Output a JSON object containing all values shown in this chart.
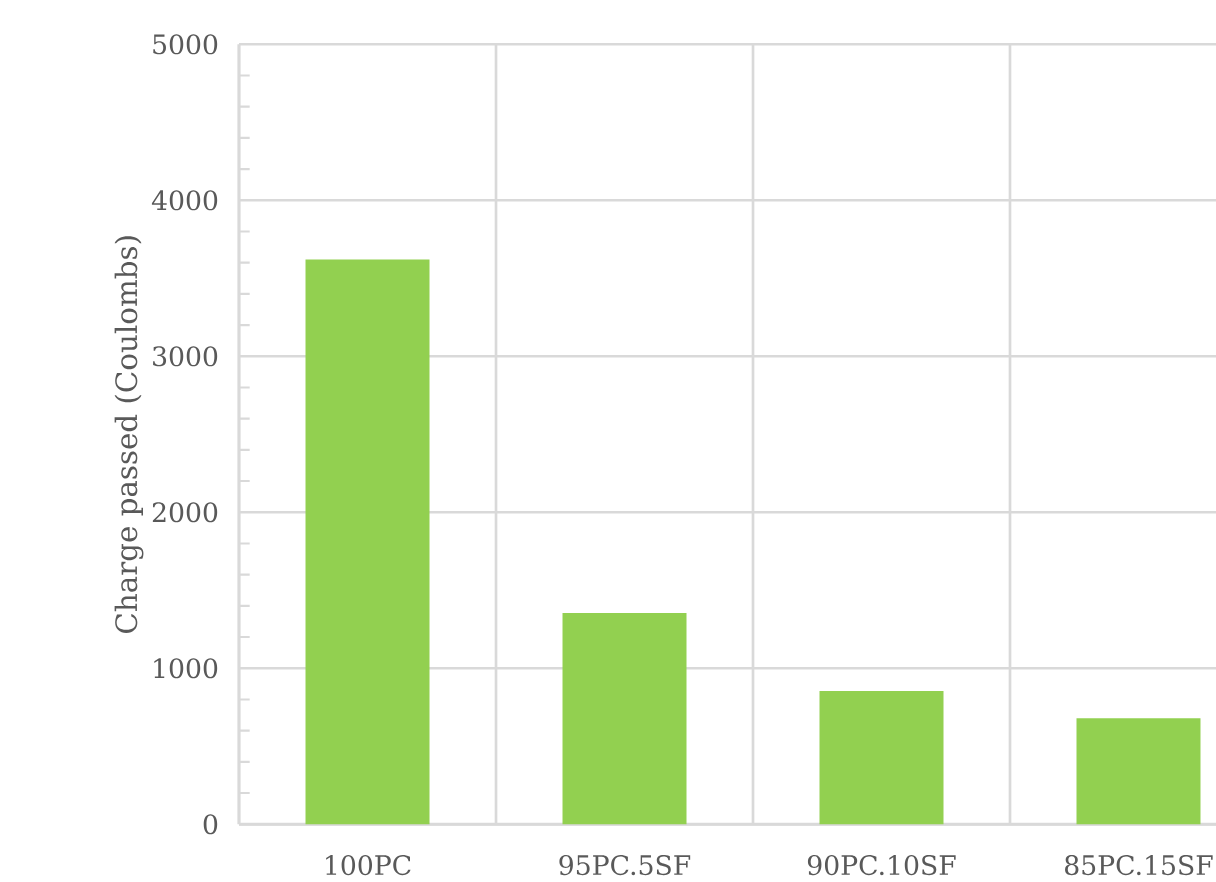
{
  "chart_data": {
    "type": "bar",
    "ylabel": "Charge passed (Coulombs)",
    "categories": [
      "100PC",
      "95PC.5SF",
      "90PC.10SF",
      "85PC.15SF"
    ],
    "values": [
      3620,
      1355,
      855,
      680
    ],
    "color": "#92d050",
    "ylim": [
      0,
      5000
    ],
    "yticks": [
      0,
      1000,
      2000,
      3000,
      4000,
      5000
    ],
    "grid": true
  }
}
